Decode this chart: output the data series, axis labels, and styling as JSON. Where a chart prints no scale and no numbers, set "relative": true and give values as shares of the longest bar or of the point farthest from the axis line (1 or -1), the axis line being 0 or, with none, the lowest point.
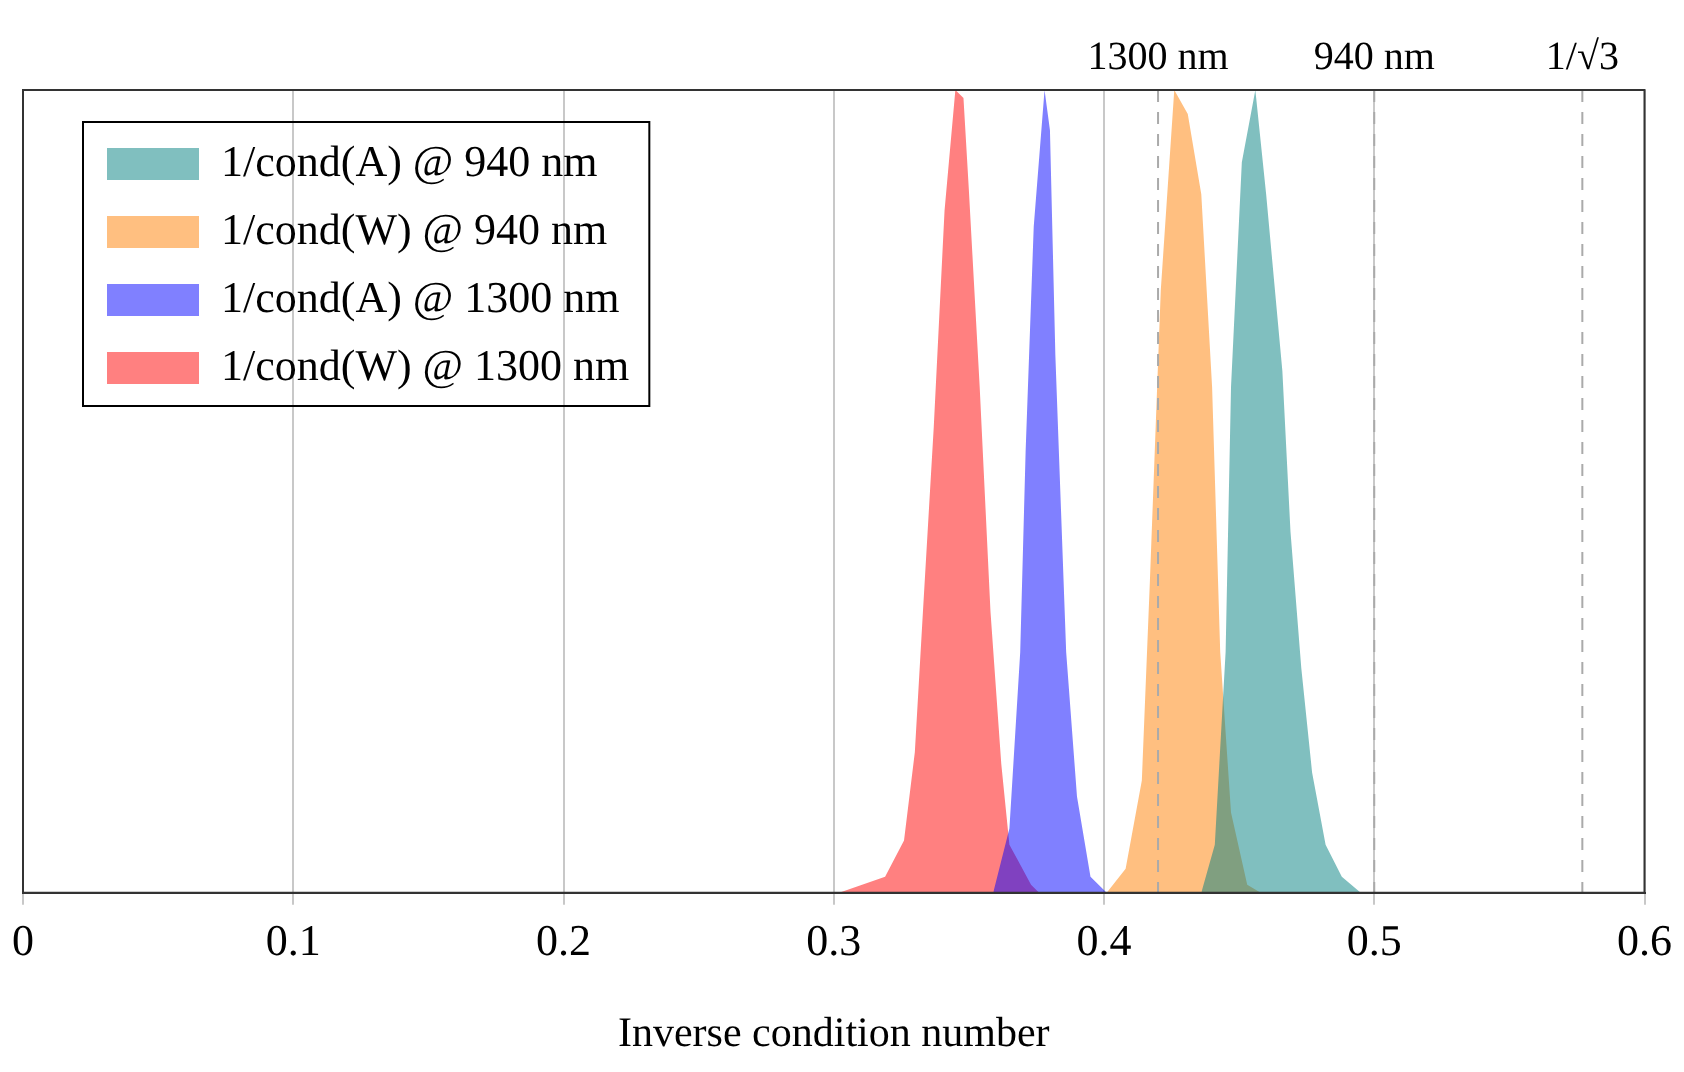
{
  "chart_data": {
    "type": "area",
    "relative": true,
    "xlabel": "Inverse condition number",
    "xlim": [
      0,
      0.6
    ],
    "xticks": [
      0,
      0.1,
      0.2,
      0.3,
      0.4,
      0.5,
      0.6
    ],
    "grid": "x",
    "legend": "top left",
    "tick_labels": "x",
    "series": [
      {
        "name": "1/cond(A) @ 940 nm",
        "color": "#80bfbf",
        "x": [
          0.436,
          0.441,
          0.445,
          0.447,
          0.451,
          0.456,
          0.46,
          0.466,
          0.469,
          0.473,
          0.477,
          0.482,
          0.488,
          0.495
        ],
        "values": [
          0,
          0.06,
          0.3,
          0.63,
          0.91,
          1,
          0.87,
          0.65,
          0.45,
          0.28,
          0.15,
          0.06,
          0.02,
          0
        ]
      },
      {
        "name": "1/cond(W) @ 940 nm",
        "color": "#ffbf80",
        "x": [
          0.401,
          0.408,
          0.414,
          0.417,
          0.421,
          0.426,
          0.431,
          0.436,
          0.44,
          0.443,
          0.447,
          0.453,
          0.458
        ],
        "values": [
          0,
          0.03,
          0.14,
          0.39,
          0.75,
          1,
          0.97,
          0.87,
          0.63,
          0.3,
          0.1,
          0.01,
          0
        ]
      },
      {
        "name": "1/cond(A) @ 1300 nm",
        "color": "#8080ff",
        "x": [
          0.359,
          0.365,
          0.369,
          0.371,
          0.374,
          0.378,
          0.38,
          0.382,
          0.386,
          0.39,
          0.395,
          0.401
        ],
        "values": [
          0,
          0.08,
          0.3,
          0.55,
          0.83,
          1,
          0.95,
          0.67,
          0.3,
          0.12,
          0.02,
          0
        ]
      },
      {
        "name": "1/cond(W) @ 1300 nm",
        "color": "#ff8080",
        "x": [
          0.302,
          0.319,
          0.326,
          0.33,
          0.333,
          0.337,
          0.341,
          0.345,
          0.348,
          0.35,
          0.354,
          0.358,
          0.362,
          0.365,
          0.373,
          0.376
        ],
        "values": [
          0,
          0.02,
          0.065,
          0.175,
          0.35,
          0.58,
          0.85,
          1,
          0.99,
          0.875,
          0.63,
          0.35,
          0.16,
          0.06,
          0.01,
          0
        ]
      }
    ],
    "ref_lines": [
      {
        "axis": "x",
        "value": 0.42,
        "label": "1300 nm",
        "color": "#aaaaaa",
        "line_style": "dashed"
      },
      {
        "axis": "x",
        "value": 0.5,
        "label": "940 nm",
        "color": "#aaaaaa",
        "line_style": "dashed"
      },
      {
        "axis": "x",
        "value": 0.577,
        "label": "1/√3",
        "color": "#aaaaaa",
        "line_style": "dashed"
      }
    ]
  }
}
